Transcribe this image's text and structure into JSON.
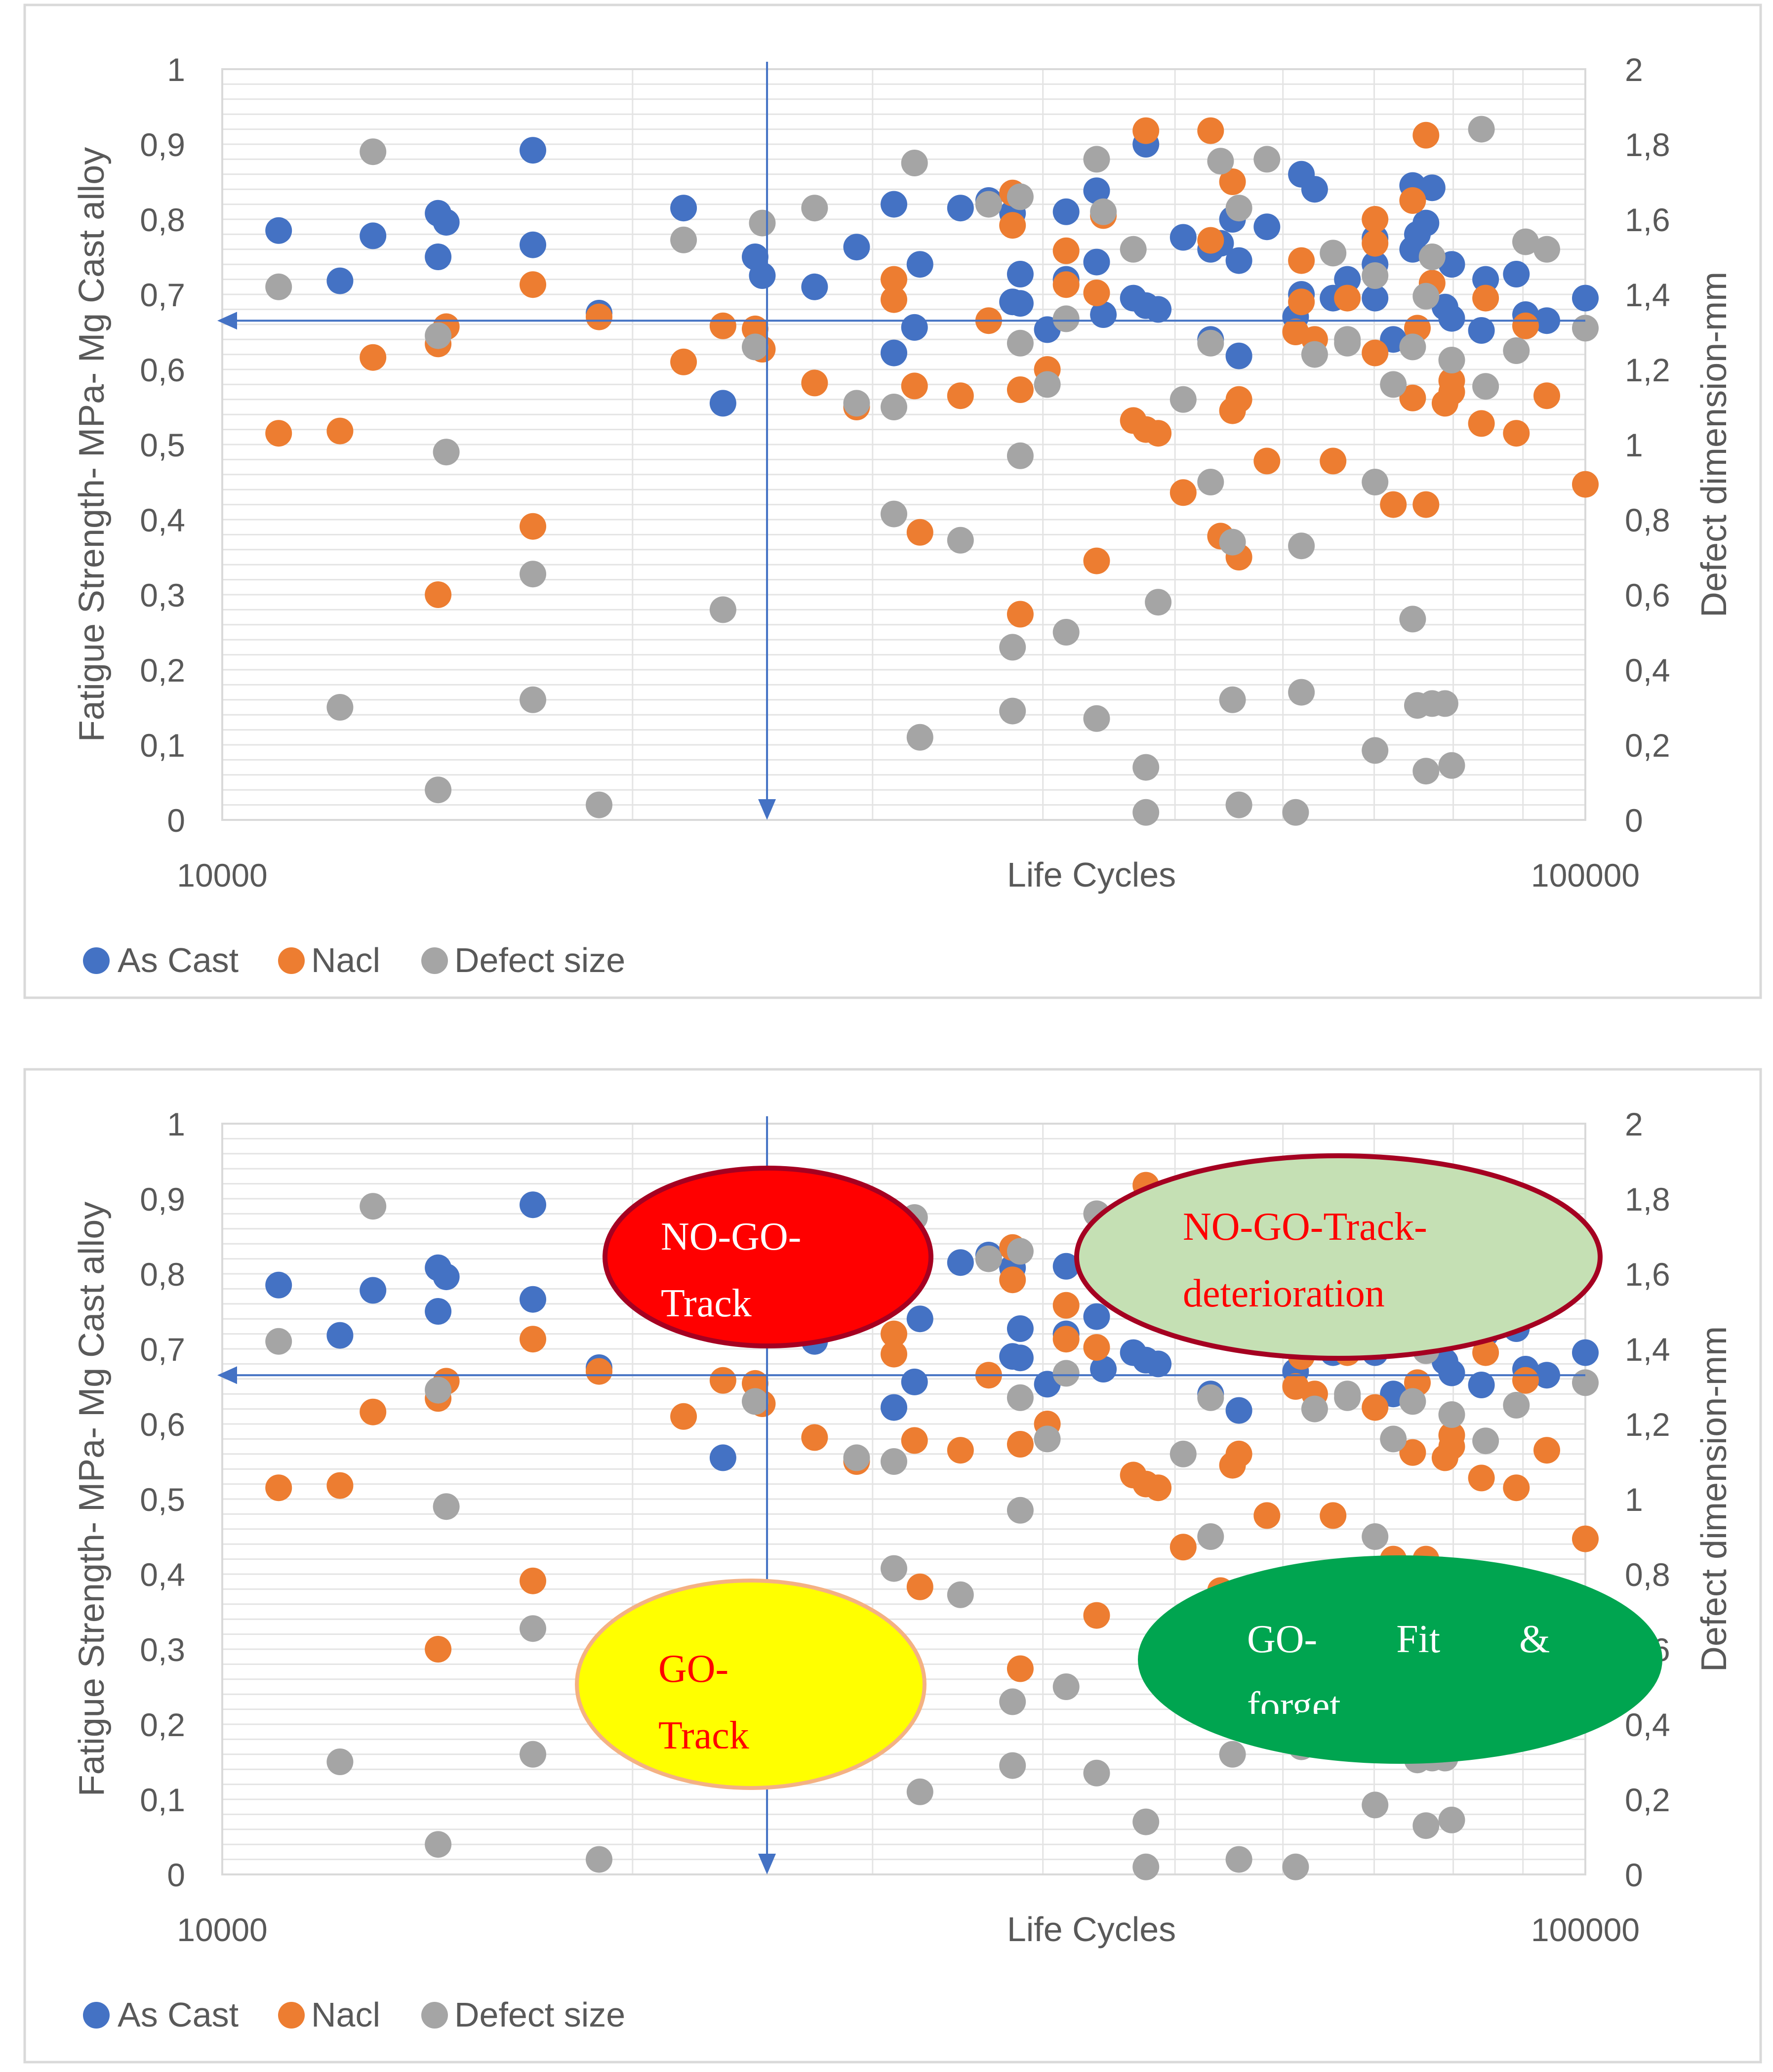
{
  "series_colors": {
    "As Cast": "#4472C4",
    "Nacl": "#ED7D31",
    "Defect size": "#A5A5A5"
  },
  "chart_data": [
    {
      "type": "scatter",
      "xscale": "log",
      "xlim": [
        10000,
        100000
      ],
      "ylim": [
        0,
        1
      ],
      "y2lim": [
        0,
        2
      ],
      "xlabel": "Life Cycles",
      "ylabel": "Fatigue Strength- MPa- Mg Cast alloy",
      "y2label": "Defect dimension-mm",
      "x_ticks": [
        "10000",
        "100000"
      ],
      "y_ticks": [
        "0",
        "0,1",
        "0,2",
        "0,3",
        "0,4",
        "0,5",
        "0,6",
        "0,7",
        "0,8",
        "0,9",
        "1"
      ],
      "y2_ticks": [
        "0",
        "0,2",
        "0,4",
        "0,6",
        "0,8",
        "1",
        "1,2",
        "1,4",
        "1,6",
        "1,8",
        "2"
      ],
      "legend": {
        "position": "bottom-left",
        "entries": [
          "As Cast",
          "Nacl",
          "Defect size"
        ]
      },
      "reference_lines": {
        "horizontal_y": 0.665,
        "vertical_x": 25100
      },
      "series": [
        {
          "name": "As Cast",
          "axis": "y",
          "points": [
            [
              11000,
              0.785
            ],
            [
              12200,
              0.718
            ],
            [
              12900,
              0.778
            ],
            [
              14400,
              0.808
            ],
            [
              14600,
              0.796
            ],
            [
              14400,
              0.75
            ],
            [
              16900,
              0.892
            ],
            [
              16900,
              0.766
            ],
            [
              18900,
              0.675
            ],
            [
              21800,
              0.815
            ],
            [
              23300,
              0.555
            ],
            [
              24600,
              0.75
            ],
            [
              24900,
              0.725
            ],
            [
              27200,
              0.71
            ],
            [
              29200,
              0.763
            ],
            [
              31100,
              0.82
            ],
            [
              31100,
              0.622
            ],
            [
              32200,
              0.656
            ],
            [
              32500,
              0.74
            ],
            [
              34800,
              0.815
            ],
            [
              36500,
              0.825
            ],
            [
              38000,
              0.808
            ],
            [
              38000,
              0.69
            ],
            [
              38500,
              0.688
            ],
            [
              38500,
              0.727
            ],
            [
              40300,
              0.653
            ],
            [
              41600,
              0.81
            ],
            [
              41600,
              0.72
            ],
            [
              43800,
              0.743
            ],
            [
              43800,
              0.838
            ],
            [
              44300,
              0.673
            ],
            [
              46600,
              0.695
            ],
            [
              47600,
              0.685
            ],
            [
              47600,
              0.9
            ],
            [
              48600,
              0.68
            ],
            [
              50700,
              0.776
            ],
            [
              53100,
              0.76
            ],
            [
              53100,
              0.64
            ],
            [
              54000,
              0.768
            ],
            [
              55100,
              0.8
            ],
            [
              55700,
              0.745
            ],
            [
              55700,
              0.618
            ],
            [
              58400,
              0.79
            ],
            [
              61300,
              0.67
            ],
            [
              61900,
              0.7
            ],
            [
              61900,
              0.86
            ],
            [
              63300,
              0.84
            ],
            [
              65300,
              0.695
            ],
            [
              66900,
              0.72
            ],
            [
              70100,
              0.775
            ],
            [
              70100,
              0.74
            ],
            [
              70100,
              0.695
            ],
            [
              72300,
              0.64
            ],
            [
              74700,
              0.76
            ],
            [
              74700,
              0.845
            ],
            [
              75300,
              0.78
            ],
            [
              76400,
              0.795
            ],
            [
              77200,
              0.842
            ],
            [
              78900,
              0.683
            ],
            [
              79800,
              0.74
            ],
            [
              79800,
              0.668
            ],
            [
              83900,
              0.652
            ],
            [
              84500,
              0.72
            ],
            [
              89000,
              0.727
            ],
            [
              90400,
              0.673
            ],
            [
              93700,
              0.665
            ],
            [
              100000,
              0.695
            ]
          ]
        },
        {
          "name": "Nacl",
          "axis": "y",
          "points": [
            [
              11000,
              0.515
            ],
            [
              12200,
              0.518
            ],
            [
              12900,
              0.616
            ],
            [
              14400,
              0.634
            ],
            [
              14600,
              0.657
            ],
            [
              14400,
              0.3
            ],
            [
              16900,
              0.713
            ],
            [
              16900,
              0.391
            ],
            [
              18900,
              0.67
            ],
            [
              21800,
              0.61
            ],
            [
              23300,
              0.658
            ],
            [
              24600,
              0.654
            ],
            [
              24900,
              0.627
            ],
            [
              27200,
              0.582
            ],
            [
              29200,
              0.55
            ],
            [
              31100,
              0.693
            ],
            [
              31100,
              0.72
            ],
            [
              32200,
              0.578
            ],
            [
              32500,
              0.383
            ],
            [
              34800,
              0.565
            ],
            [
              36500,
              0.665
            ],
            [
              38000,
              0.792
            ],
            [
              38000,
              0.835
            ],
            [
              38500,
              0.573
            ],
            [
              38500,
              0.274
            ],
            [
              40300,
              0.6
            ],
            [
              41600,
              0.758
            ],
            [
              41600,
              0.713
            ],
            [
              43800,
              0.702
            ],
            [
              43800,
              0.345
            ],
            [
              44300,
              0.805
            ],
            [
              46600,
              0.532
            ],
            [
              47600,
              0.918
            ],
            [
              47600,
              0.52
            ],
            [
              48600,
              0.515
            ],
            [
              50700,
              0.436
            ],
            [
              53100,
              0.918
            ],
            [
              53100,
              0.772
            ],
            [
              54000,
              0.378
            ],
            [
              55100,
              0.85
            ],
            [
              55100,
              0.545
            ],
            [
              55700,
              0.56
            ],
            [
              55700,
              0.35
            ],
            [
              58400,
              0.478
            ],
            [
              61300,
              0.65
            ],
            [
              61900,
              0.69
            ],
            [
              61900,
              0.745
            ],
            [
              63300,
              0.64
            ],
            [
              65300,
              0.478
            ],
            [
              66900,
              0.695
            ],
            [
              70100,
              0.768
            ],
            [
              70100,
              0.8
            ],
            [
              70100,
              0.622
            ],
            [
              72300,
              0.42
            ],
            [
              74700,
              0.562
            ],
            [
              74700,
              0.825
            ],
            [
              75300,
              0.655
            ],
            [
              76400,
              0.912
            ],
            [
              76400,
              0.42
            ],
            [
              77200,
              0.715
            ],
            [
              78900,
              0.555
            ],
            [
              79800,
              0.57
            ],
            [
              79800,
              0.585
            ],
            [
              83900,
              0.528
            ],
            [
              84500,
              0.695
            ],
            [
              89000,
              0.515
            ],
            [
              90400,
              0.658
            ],
            [
              93700,
              0.565
            ],
            [
              100000,
              0.447
            ]
          ]
        },
        {
          "name": "Defect size",
          "axis": "y2",
          "points": [
            [
              11000,
              1.42
            ],
            [
              12200,
              0.3
            ],
            [
              12900,
              1.78
            ],
            [
              14400,
              1.29
            ],
            [
              14400,
              0.08
            ],
            [
              14600,
              0.98
            ],
            [
              16900,
              0.655
            ],
            [
              16900,
              0.32
            ],
            [
              18900,
              0.04
            ],
            [
              21800,
              1.545
            ],
            [
              23300,
              0.56
            ],
            [
              24600,
              1.26
            ],
            [
              24900,
              1.59
            ],
            [
              27200,
              1.63
            ],
            [
              29200,
              1.11
            ],
            [
              31100,
              0.815
            ],
            [
              31100,
              1.1
            ],
            [
              32200,
              1.75
            ],
            [
              32500,
              0.22
            ],
            [
              34800,
              0.745
            ],
            [
              36500,
              1.64
            ],
            [
              38000,
              0.46
            ],
            [
              38500,
              1.66
            ],
            [
              38500,
              1.27
            ],
            [
              38500,
              0.97
            ],
            [
              38000,
              0.29
            ],
            [
              40300,
              1.16
            ],
            [
              41600,
              1.335
            ],
            [
              41600,
              0.5
            ],
            [
              43800,
              1.76
            ],
            [
              43800,
              0.27
            ],
            [
              44300,
              1.62
            ],
            [
              46600,
              1.52
            ],
            [
              47600,
              0.14
            ],
            [
              47600,
              0.02
            ],
            [
              48600,
              0.58
            ],
            [
              50700,
              1.12
            ],
            [
              53100,
              0.9
            ],
            [
              53100,
              1.27
            ],
            [
              54000,
              1.755
            ],
            [
              55100,
              0.74
            ],
            [
              55100,
              0.32
            ],
            [
              55700,
              1.63
            ],
            [
              55700,
              0.04
            ],
            [
              58400,
              1.76
            ],
            [
              61300,
              0.02
            ],
            [
              61900,
              0.73
            ],
            [
              61900,
              0.34
            ],
            [
              63300,
              1.24
            ],
            [
              65300,
              1.51
            ],
            [
              66900,
              1.28
            ],
            [
              66900,
              1.27
            ],
            [
              70100,
              1.45
            ],
            [
              70100,
              0.9
            ],
            [
              70100,
              0.185
            ],
            [
              72300,
              1.16
            ],
            [
              74700,
              1.26
            ],
            [
              74700,
              0.535
            ],
            [
              75300,
              0.305
            ],
            [
              76400,
              1.395
            ],
            [
              76400,
              0.13
            ],
            [
              77200,
              1.5
            ],
            [
              77200,
              0.31
            ],
            [
              78900,
              0.31
            ],
            [
              79800,
              1.225
            ],
            [
              79800,
              0.145
            ],
            [
              83900,
              1.84
            ],
            [
              84500,
              1.155
            ],
            [
              89000,
              1.25
            ],
            [
              90400,
              1.54
            ],
            [
              93700,
              1.52
            ],
            [
              100000,
              1.31
            ]
          ]
        }
      ]
    },
    {
      "type": "scatter",
      "xscale": "log",
      "xlim": [
        10000,
        100000
      ],
      "ylim": [
        0,
        1
      ],
      "y2lim": [
        0,
        2
      ],
      "xlabel": "Life Cycles",
      "ylabel": "Fatigue Strength- MPa- Mg Cast alloy",
      "y2label": "Defect dimension-mm",
      "x_ticks": [
        "10000",
        "100000"
      ],
      "y_ticks": [
        "0",
        "0,1",
        "0,2",
        "0,3",
        "0,4",
        "0,5",
        "0,6",
        "0,7",
        "0,8",
        "0,9",
        "1"
      ],
      "y2_ticks": [
        "0",
        "0,2",
        "0,4",
        "0,6",
        "0,8",
        "1",
        "1,2",
        "1,4",
        "1,6",
        "1,8",
        "2"
      ],
      "legend": {
        "position": "bottom-left",
        "entries": [
          "As Cast",
          "Nacl",
          "Defect size"
        ]
      },
      "reference_lines": {
        "horizontal_y": 0.665,
        "vertical_x": 25100
      },
      "series_source": "same as chart 1",
      "annotations": [
        {
          "lines": [
            "NO-GO-",
            "Track"
          ],
          "fill": "#FF0000",
          "stroke": "#A50021",
          "text_color": "#FFFFFF",
          "region": "upper-left"
        },
        {
          "lines": [
            "NO-GO-Track-",
            "deterioration"
          ],
          "fill": "#C5E0B4",
          "stroke": "#A50021",
          "text_color": "#FF0000",
          "region": "upper-right"
        },
        {
          "lines": [
            "GO-",
            "Track"
          ],
          "fill": "#FFFF00",
          "stroke": "#F4B183",
          "text_color": "#FF0000",
          "region": "lower-left"
        },
        {
          "lines": [
            "GO-        Fit        &",
            "forget"
          ],
          "fill": "#00A550",
          "stroke": "#00A550",
          "text_color": "#FFFFFF",
          "region": "lower-right"
        }
      ]
    }
  ]
}
